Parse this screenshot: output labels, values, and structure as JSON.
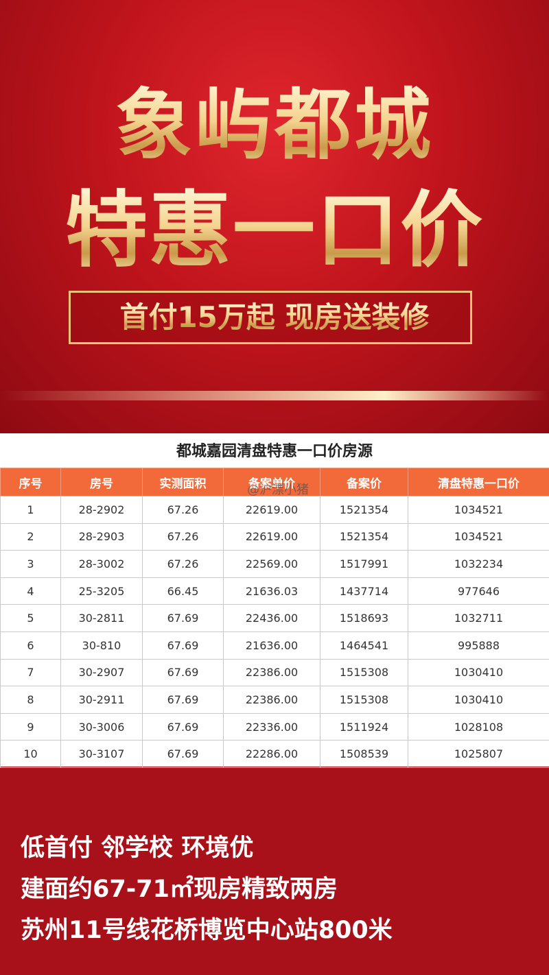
{
  "header": {
    "title_line1": "象屿都城",
    "title_line2": "特惠一口价",
    "banner": "首付15万起 现房送装修"
  },
  "table": {
    "title": "都城嘉园清盘特惠一口价房源",
    "columns": [
      "序号",
      "房号",
      "实测面积",
      "备案单价",
      "备案价",
      "清盘特惠一口价"
    ],
    "rows": [
      [
        "1",
        "28-2902",
        "67.26",
        "22619.00",
        "1521354",
        "1034521"
      ],
      [
        "2",
        "28-2903",
        "67.26",
        "22619.00",
        "1521354",
        "1034521"
      ],
      [
        "3",
        "28-3002",
        "67.26",
        "22569.00",
        "1517991",
        "1032234"
      ],
      [
        "4",
        "25-3205",
        "66.45",
        "21636.03",
        "1437714",
        "977646"
      ],
      [
        "5",
        "30-2811",
        "67.69",
        "22436.00",
        "1518693",
        "1032711"
      ],
      [
        "6",
        "30-810",
        "67.69",
        "21636.00",
        "1464541",
        "995888"
      ],
      [
        "7",
        "30-2907",
        "67.69",
        "22386.00",
        "1515308",
        "1030410"
      ],
      [
        "8",
        "30-2911",
        "67.69",
        "22386.00",
        "1515308",
        "1030410"
      ],
      [
        "9",
        "30-3006",
        "67.69",
        "22336.00",
        "1511924",
        "1028108"
      ],
      [
        "10",
        "30-3107",
        "67.69",
        "22286.00",
        "1508539",
        "1025807"
      ]
    ]
  },
  "watermark": "@沪漂小猪",
  "footer": {
    "lines": [
      "低首付 邻学校 环境优",
      "建面约67-71㎡现房精致两房",
      "苏州11号线花桥博览中心站800米"
    ]
  }
}
